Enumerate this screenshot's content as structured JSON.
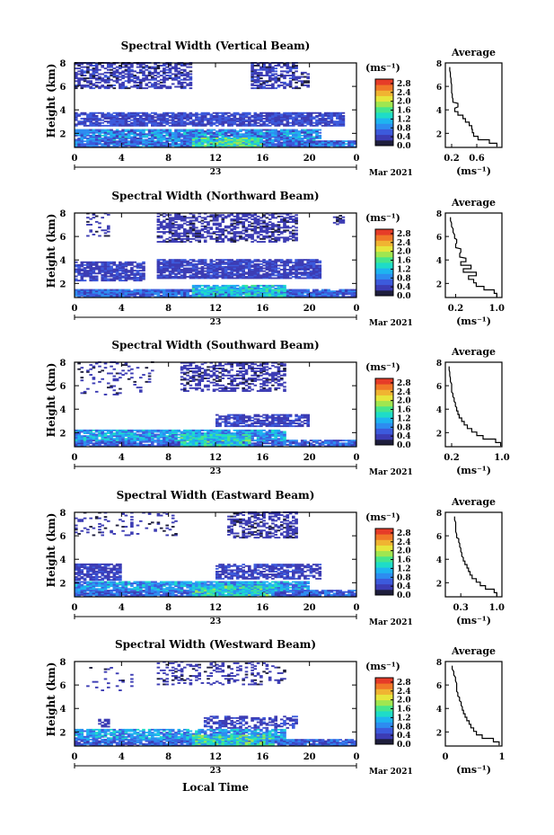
{
  "figure": {
    "x_tick_labels": [
      "0",
      "4",
      "8",
      "12",
      "16",
      "20",
      "0"
    ],
    "day_label": "23",
    "month_label": "Mar 2021",
    "x_axis_title": "Local Time",
    "y_tick_labels": [
      "2",
      "4",
      "6",
      "8"
    ],
    "y_axis_title": "Height (km)",
    "colorbar_unit": "(ms⁻¹)",
    "colorbar_tick_labels": [
      "0.0",
      "0.4",
      "0.8",
      "1.2",
      "1.6",
      "2.0",
      "2.4",
      "2.8"
    ],
    "average_title": "Average",
    "average_unit": "(ms⁻¹)",
    "colormap": [
      "#1e1e3c",
      "#3c3cb4",
      "#3c5adc",
      "#2d8cf0",
      "#1eb4f0",
      "#1edcc8",
      "#46e68c",
      "#a0e650",
      "#e6e63c",
      "#f0b432",
      "#f07828",
      "#e63c28"
    ]
  },
  "chart_data": [
    {
      "type": "heatmap",
      "title": "Spectral Width (Vertical Beam)",
      "x_range_hours": [
        0,
        24
      ],
      "y_range_km": [
        0.8,
        8
      ],
      "color_range": [
        0,
        3
      ],
      "pattern": [
        {
          "t0": 0,
          "t1": 24,
          "h0": 0.8,
          "h1": 1.4,
          "density": 0.95,
          "v0": 0.3,
          "v1": 1.1
        },
        {
          "t0": 0,
          "t1": 21,
          "h0": 1.4,
          "h1": 2.3,
          "density": 0.9,
          "v0": 0.4,
          "v1": 1.3
        },
        {
          "t0": 10,
          "t1": 16,
          "h0": 0.8,
          "h1": 1.6,
          "density": 0.95,
          "v0": 0.9,
          "v1": 1.9
        },
        {
          "t0": 0,
          "t1": 23,
          "h0": 2.6,
          "h1": 3.7,
          "density": 0.85,
          "v0": 0.25,
          "v1": 0.7
        },
        {
          "t0": 0,
          "t1": 10,
          "h0": 5.8,
          "h1": 8,
          "density": 0.6,
          "v0": 0.2,
          "v1": 0.55
        },
        {
          "t0": 15,
          "t1": 19,
          "h0": 5.8,
          "h1": 8,
          "density": 0.6,
          "v0": 0.2,
          "v1": 0.55
        },
        {
          "t0": 19,
          "t1": 20,
          "h0": 5.8,
          "h1": 7.2,
          "density": 0.4,
          "v0": 0.2,
          "v1": 0.5
        }
      ],
      "average": {
        "xlim": [
          0.1,
          1.0
        ],
        "x_tick_labels": [
          "0.2",
          "0.6"
        ],
        "x_tick_values": [
          0.2,
          0.6
        ],
        "height_km": [
          1.0,
          1.3,
          1.6,
          1.9,
          2.2,
          2.5,
          2.8,
          3.1,
          3.4,
          3.7,
          4.0,
          4.4,
          4.8,
          5.2,
          5.6,
          6.0,
          6.5,
          7.0,
          7.5
        ],
        "values": [
          0.92,
          0.8,
          0.62,
          0.55,
          0.53,
          0.52,
          0.48,
          0.42,
          0.38,
          0.3,
          0.25,
          0.3,
          0.22,
          0.21,
          0.2,
          0.2,
          0.19,
          0.18,
          0.17
        ]
      }
    },
    {
      "type": "heatmap",
      "title": "Spectral Width (Northward Beam)",
      "x_range_hours": [
        0,
        24
      ],
      "y_range_km": [
        0.8,
        8
      ],
      "color_range": [
        0,
        3
      ],
      "pattern": [
        {
          "t0": 0,
          "t1": 24,
          "h0": 0.8,
          "h1": 1.5,
          "density": 0.95,
          "v0": 0.3,
          "v1": 1.0
        },
        {
          "t0": 10,
          "t1": 18,
          "h0": 0.8,
          "h1": 1.8,
          "density": 0.9,
          "v0": 0.7,
          "v1": 1.6
        },
        {
          "t0": 0,
          "t1": 6,
          "h0": 2.2,
          "h1": 3.8,
          "density": 0.8,
          "v0": 0.25,
          "v1": 0.6
        },
        {
          "t0": 7,
          "t1": 21,
          "h0": 2.4,
          "h1": 4.0,
          "density": 0.85,
          "v0": 0.25,
          "v1": 0.6
        },
        {
          "t0": 7,
          "t1": 19,
          "h0": 5.5,
          "h1": 8,
          "density": 0.55,
          "v0": 0.2,
          "v1": 0.5
        },
        {
          "t0": 1,
          "t1": 3,
          "h0": 6.0,
          "h1": 8,
          "density": 0.2,
          "v0": 0.2,
          "v1": 0.4
        },
        {
          "t0": 22,
          "t1": 23,
          "h0": 7.0,
          "h1": 7.8,
          "density": 0.5,
          "v0": 0.2,
          "v1": 0.4
        }
      ],
      "average": {
        "xlim": [
          0.0,
          1.1
        ],
        "x_tick_labels": [
          "0.2",
          "1.0"
        ],
        "x_tick_values": [
          0.2,
          1.0
        ],
        "height_km": [
          1.0,
          1.3,
          1.6,
          1.9,
          2.2,
          2.5,
          2.8,
          3.1,
          3.4,
          3.7,
          4.0,
          4.4,
          4.8,
          5.2,
          5.6,
          6.0,
          6.5,
          7.0,
          7.5
        ],
        "values": [
          1.0,
          0.95,
          0.75,
          0.6,
          0.55,
          0.45,
          0.6,
          0.35,
          0.5,
          0.3,
          0.4,
          0.28,
          0.3,
          0.2,
          0.22,
          0.18,
          0.15,
          0.12,
          0.1
        ]
      }
    },
    {
      "type": "heatmap",
      "title": "Spectral Width (Southward Beam)",
      "x_range_hours": [
        0,
        24
      ],
      "y_range_km": [
        0.8,
        8
      ],
      "color_range": [
        0,
        3
      ],
      "pattern": [
        {
          "t0": 0,
          "t1": 24,
          "h0": 0.8,
          "h1": 1.4,
          "density": 0.9,
          "v0": 0.3,
          "v1": 1.0
        },
        {
          "t0": 0,
          "t1": 18,
          "h0": 1.3,
          "h1": 2.2,
          "density": 0.9,
          "v0": 0.5,
          "v1": 1.4
        },
        {
          "t0": 9,
          "t1": 15,
          "h0": 0.8,
          "h1": 1.8,
          "density": 0.9,
          "v0": 0.9,
          "v1": 1.8
        },
        {
          "t0": 12,
          "t1": 20,
          "h0": 2.5,
          "h1": 3.5,
          "density": 0.75,
          "v0": 0.25,
          "v1": 0.6
        },
        {
          "t0": 9,
          "t1": 18,
          "h0": 5.5,
          "h1": 8,
          "density": 0.5,
          "v0": 0.2,
          "v1": 0.5
        },
        {
          "t0": 0,
          "t1": 7,
          "h0": 5.2,
          "h1": 8,
          "density": 0.12,
          "v0": 0.2,
          "v1": 0.4
        }
      ],
      "average": {
        "xlim": [
          0.1,
          1.0
        ],
        "x_tick_labels": [
          "0.2",
          "1.0"
        ],
        "x_tick_values": [
          0.2,
          1.0
        ],
        "height_km": [
          1.0,
          1.3,
          1.6,
          1.9,
          2.2,
          2.5,
          2.8,
          3.1,
          3.4,
          3.7,
          4.0,
          4.4,
          4.8,
          5.2,
          5.6,
          6.0,
          6.5,
          7.0,
          7.5
        ],
        "values": [
          0.98,
          0.9,
          0.7,
          0.6,
          0.52,
          0.45,
          0.4,
          0.36,
          0.32,
          0.3,
          0.28,
          0.26,
          0.24,
          0.22,
          0.2,
          0.2,
          0.18,
          0.17,
          0.16
        ]
      }
    },
    {
      "type": "heatmap",
      "title": "Spectral Width (Eastward Beam)",
      "x_range_hours": [
        0,
        24
      ],
      "y_range_km": [
        0.8,
        8
      ],
      "color_range": [
        0,
        3
      ],
      "pattern": [
        {
          "t0": 0,
          "t1": 24,
          "h0": 0.8,
          "h1": 1.4,
          "density": 0.9,
          "v0": 0.3,
          "v1": 1.0
        },
        {
          "t0": 0,
          "t1": 20,
          "h0": 1.3,
          "h1": 2.1,
          "density": 0.9,
          "v0": 0.5,
          "v1": 1.4
        },
        {
          "t0": 10,
          "t1": 17,
          "h0": 0.8,
          "h1": 1.7,
          "density": 0.9,
          "v0": 0.8,
          "v1": 1.8
        },
        {
          "t0": 0,
          "t1": 4,
          "h0": 2.2,
          "h1": 3.6,
          "density": 0.8,
          "v0": 0.25,
          "v1": 0.6
        },
        {
          "t0": 12,
          "t1": 21,
          "h0": 2.3,
          "h1": 3.6,
          "density": 0.7,
          "v0": 0.25,
          "v1": 0.6
        },
        {
          "t0": 13,
          "t1": 19,
          "h0": 5.8,
          "h1": 8,
          "density": 0.5,
          "v0": 0.2,
          "v1": 0.5
        },
        {
          "t0": 0,
          "t1": 9,
          "h0": 6.0,
          "h1": 8,
          "density": 0.15,
          "v0": 0.2,
          "v1": 0.4
        }
      ],
      "average": {
        "xlim": [
          0.0,
          1.1
        ],
        "x_tick_labels": [
          "0.3",
          "1.0"
        ],
        "x_tick_values": [
          0.3,
          1.0
        ],
        "height_km": [
          1.0,
          1.3,
          1.6,
          1.9,
          2.2,
          2.5,
          2.8,
          3.1,
          3.4,
          3.7,
          4.0,
          4.4,
          4.8,
          5.2,
          5.6,
          6.0,
          6.5,
          7.0,
          7.5
        ],
        "values": [
          1.0,
          0.95,
          0.78,
          0.68,
          0.6,
          0.52,
          0.48,
          0.45,
          0.42,
          0.38,
          0.35,
          0.32,
          0.3,
          0.28,
          0.26,
          0.22,
          0.2,
          0.2,
          0.18
        ]
      }
    },
    {
      "type": "heatmap",
      "title": "Spectral Width (Westward Beam)",
      "x_range_hours": [
        0,
        24
      ],
      "y_range_km": [
        0.8,
        8
      ],
      "color_range": [
        0,
        3
      ],
      "pattern": [
        {
          "t0": 0,
          "t1": 24,
          "h0": 0.8,
          "h1": 1.4,
          "density": 0.9,
          "v0": 0.3,
          "v1": 1.0
        },
        {
          "t0": 0,
          "t1": 18,
          "h0": 1.3,
          "h1": 2.2,
          "density": 0.85,
          "v0": 0.5,
          "v1": 1.4
        },
        {
          "t0": 10,
          "t1": 17,
          "h0": 0.8,
          "h1": 1.7,
          "density": 0.9,
          "v0": 0.8,
          "v1": 1.9
        },
        {
          "t0": 11,
          "t1": 19,
          "h0": 2.3,
          "h1": 3.3,
          "density": 0.55,
          "v0": 0.25,
          "v1": 0.6
        },
        {
          "t0": 2,
          "t1": 3,
          "h0": 2.4,
          "h1": 3.1,
          "density": 0.5,
          "v0": 0.25,
          "v1": 0.5
        },
        {
          "t0": 7,
          "t1": 18,
          "h0": 6.0,
          "h1": 8,
          "density": 0.22,
          "v0": 0.2,
          "v1": 0.5
        },
        {
          "t0": 1,
          "t1": 5,
          "h0": 5.5,
          "h1": 7.5,
          "density": 0.1,
          "v0": 0.2,
          "v1": 0.4
        }
      ],
      "average": {
        "xlim": [
          0,
          1
        ],
        "x_tick_labels": [
          "0",
          "1"
        ],
        "x_tick_values": [
          0,
          1
        ],
        "height_km": [
          1.0,
          1.3,
          1.6,
          1.9,
          2.2,
          2.5,
          2.8,
          3.1,
          3.4,
          3.7,
          4.0,
          4.4,
          4.8,
          5.2,
          5.6,
          6.0,
          6.5,
          7.0,
          7.5
        ],
        "values": [
          0.95,
          0.85,
          0.65,
          0.55,
          0.5,
          0.45,
          0.42,
          0.38,
          0.35,
          0.32,
          0.3,
          0.28,
          0.25,
          0.22,
          0.2,
          0.2,
          0.18,
          0.15,
          0.12
        ]
      }
    }
  ]
}
